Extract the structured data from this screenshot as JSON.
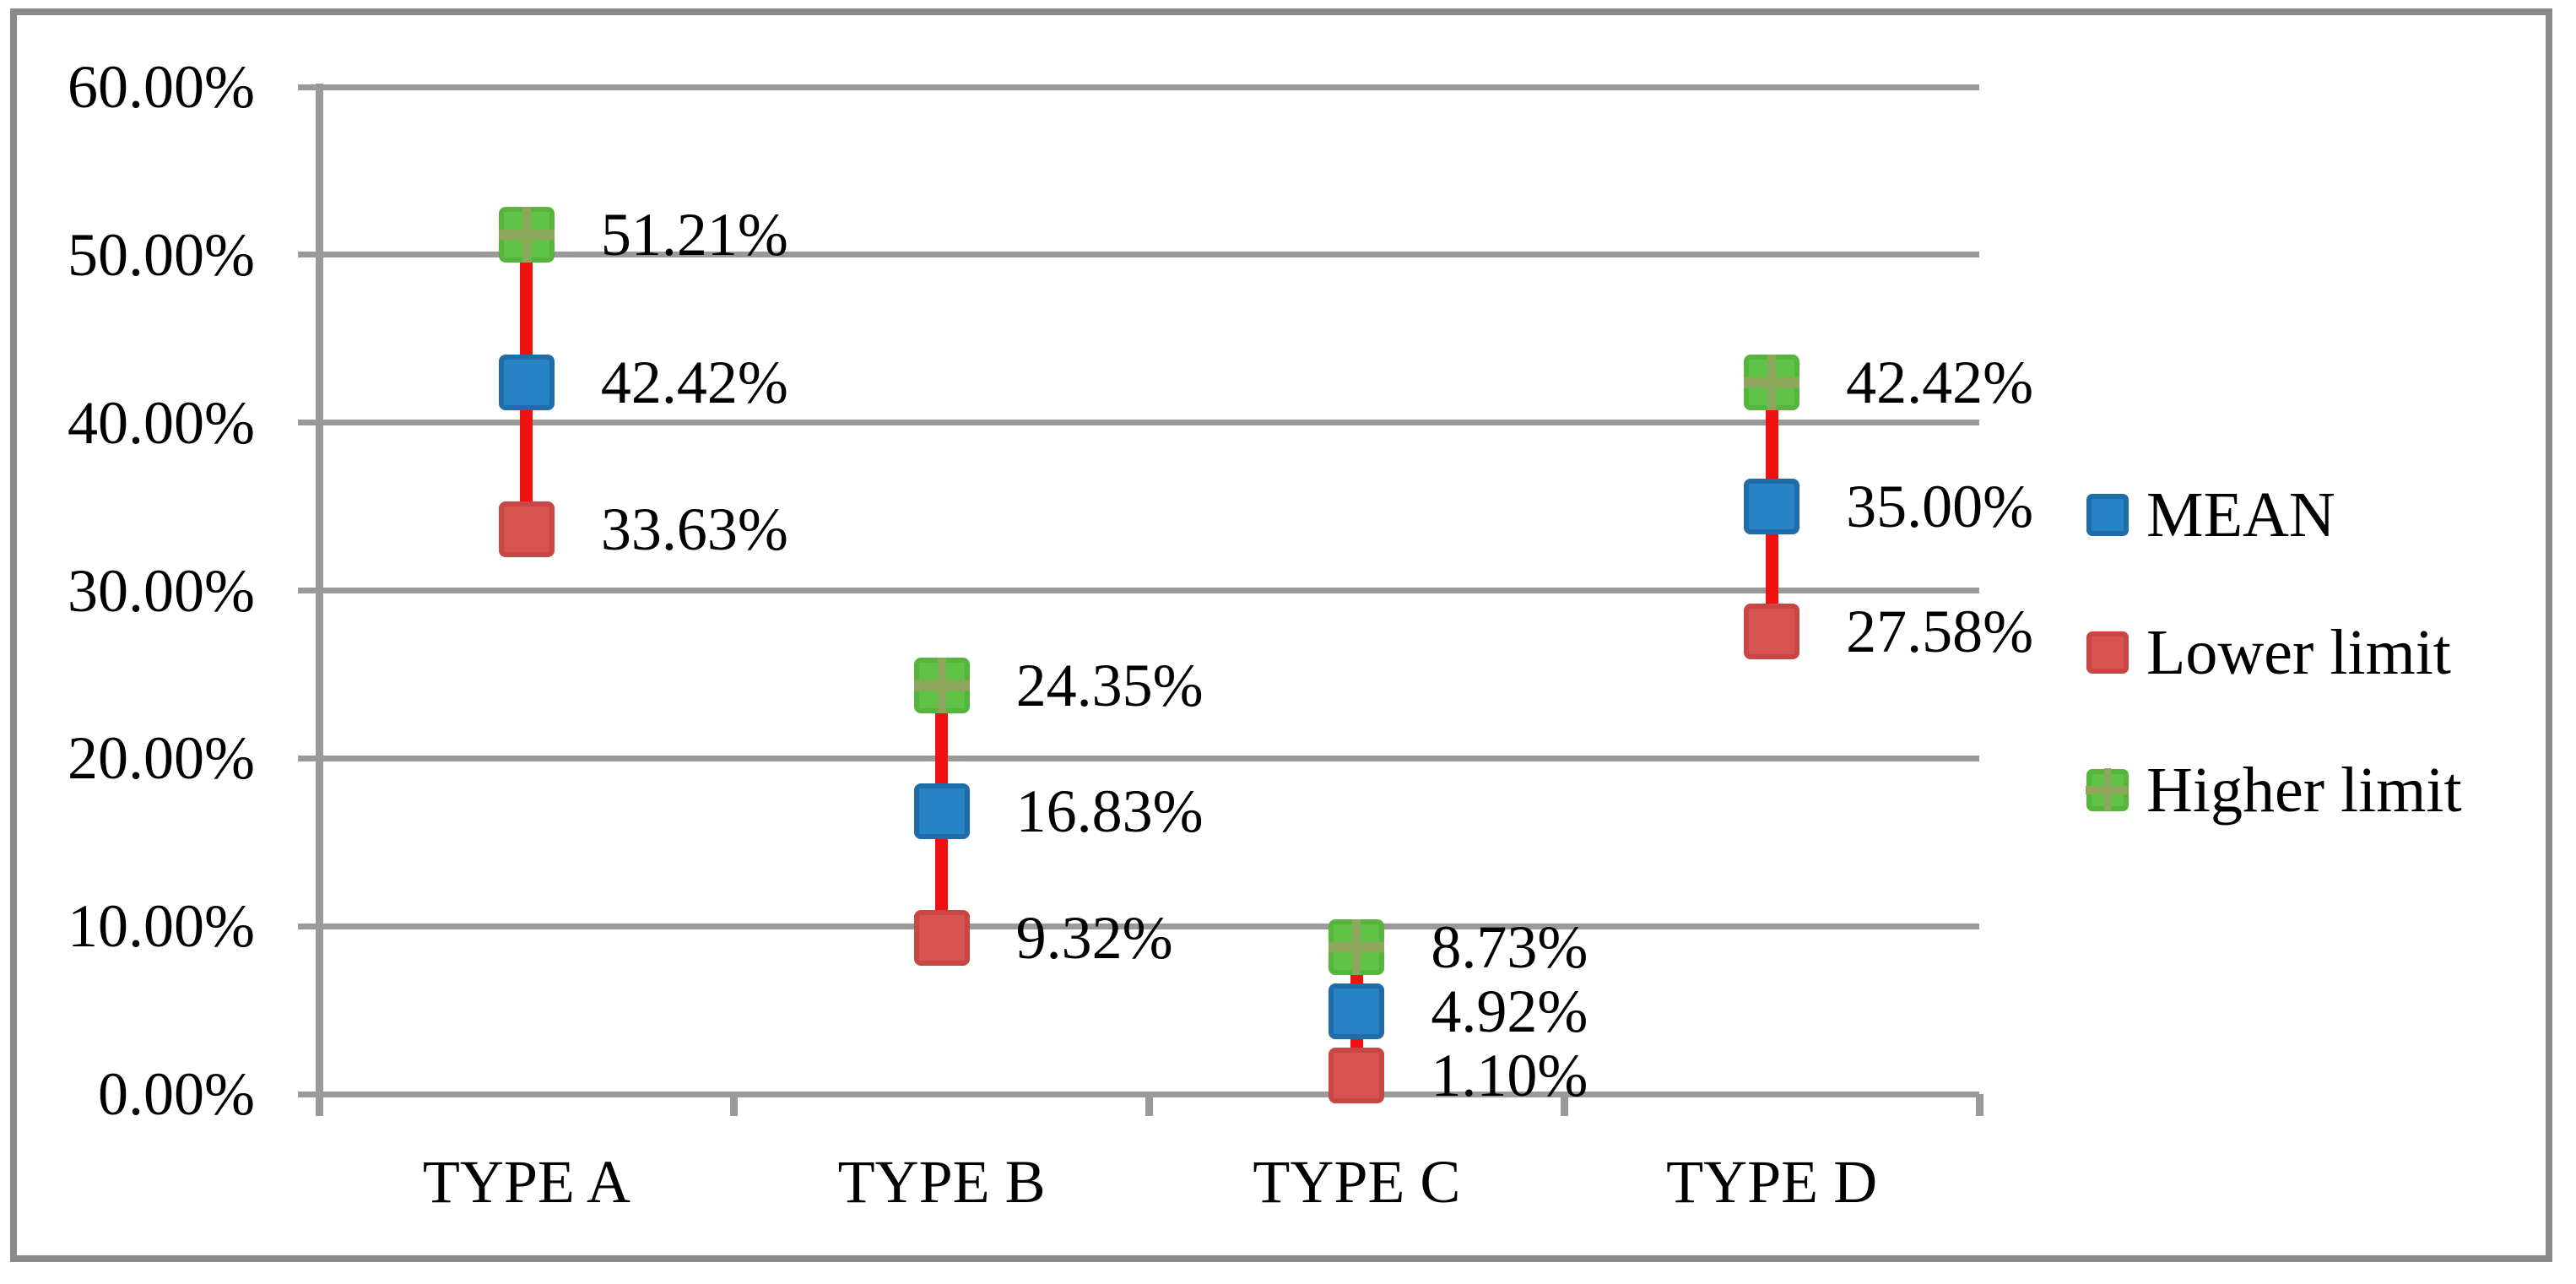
{
  "chart_data": {
    "type": "scatter",
    "subtype": "high-low-mean",
    "title": "",
    "categories": [
      "TYPE A",
      "TYPE B",
      "TYPE C",
      "TYPE D"
    ],
    "series": [
      {
        "name": "MEAN",
        "marker": "square",
        "color": "#2883c5",
        "border_color": "#1f6ca9",
        "values": [
          42.42,
          16.83,
          4.92,
          35.0
        ],
        "labels": [
          "42.42%",
          "16.83%",
          "4.92%",
          "35.00%"
        ]
      },
      {
        "name": "Lower limit",
        "marker": "square",
        "color": "#d7534f",
        "border_color": "#c74744",
        "values": [
          33.63,
          9.32,
          1.1,
          27.58
        ],
        "labels": [
          "33.63%",
          "9.32%",
          "1.10%",
          "27.58%"
        ]
      },
      {
        "name": "Higher limit",
        "marker": "square-cross",
        "color": "#5fc348",
        "border_color": "#57b53e",
        "cross_color": "#8ca65b",
        "values": [
          51.21,
          24.35,
          8.73,
          42.42
        ],
        "labels": [
          "51.21%",
          "24.35%",
          "8.73%",
          "42.42%"
        ]
      }
    ],
    "y_axis": {
      "min": 0,
      "max": 60,
      "tick_values": [
        60,
        50,
        40,
        30,
        20,
        10,
        0
      ],
      "tick_labels": [
        "60.00%",
        "50.00%",
        "40.00%",
        "30.00%",
        "20.00%",
        "10.00%",
        "0.00%"
      ]
    },
    "x_axis": {
      "labels": [
        "TYPE A",
        "TYPE B",
        "TYPE C",
        "TYPE D"
      ]
    },
    "legend": {
      "position": "right",
      "entries": [
        "MEAN",
        "Lower limit",
        "Higher limit"
      ]
    },
    "grid": true,
    "connector_color": "#f21111",
    "gridline_color": "#9a9a9a",
    "frame_color": "#8a8a8a",
    "text_color": "#000000"
  }
}
